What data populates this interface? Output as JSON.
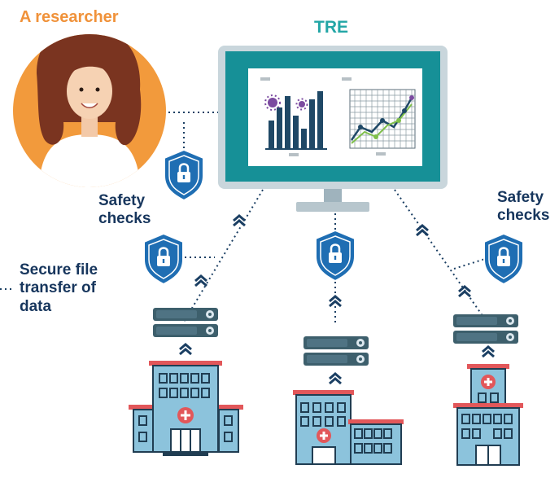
{
  "labels": {
    "researcher": "A researcher",
    "tre": "TRE",
    "safety_checks_left": "Safety\nchecks",
    "safety_checks_right": "Safety\nchecks",
    "secure_transfer": "Secure file\ntransfer of\ndata"
  },
  "colors": {
    "researcher_label": "#f0923a",
    "tre_label": "#23a6a6",
    "text_dark": "#17365d",
    "researcher_circle": "#f29a3c",
    "shield": "#1f6eb3",
    "monitor_frame": "#1b9aa0",
    "server": "#3d5f6c",
    "building": "#8cc3dc",
    "accent_red": "#e2575a"
  },
  "icons": [
    "researcher-avatar",
    "shield-lock-icon",
    "monitor-icon",
    "bar-chart-icon",
    "line-chart-icon",
    "virus-icon",
    "server-icon",
    "hospital-building-icon",
    "chevron-up-icon"
  ]
}
